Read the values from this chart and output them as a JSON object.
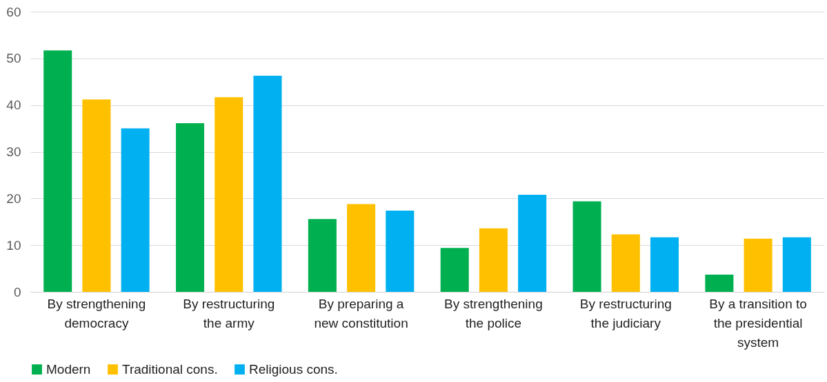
{
  "chart_data": {
    "type": "bar",
    "categories": [
      "By strengthening democracy",
      "By restructuring the army",
      "By preparing a new constitution",
      "By strengthening the police",
      "By restructuring the judiciary",
      "By a transition to the presidential system"
    ],
    "series": [
      {
        "name": "Modern",
        "color": "#00b050",
        "values": [
          51.7,
          36.1,
          15.6,
          9.4,
          19.4,
          3.7
        ]
      },
      {
        "name": "Traditional cons.",
        "color": "#ffc000",
        "values": [
          41.2,
          41.7,
          18.8,
          13.6,
          12.3,
          11.4
        ]
      },
      {
        "name": "Religious cons.",
        "color": "#00b0f0",
        "values": [
          35.0,
          46.3,
          17.4,
          20.8,
          11.7,
          11.7
        ]
      }
    ],
    "ylim": [
      0,
      60
    ],
    "yticks": [
      0,
      10,
      20,
      30,
      40,
      50,
      60
    ],
    "grid": "y",
    "legend": "bottom"
  }
}
